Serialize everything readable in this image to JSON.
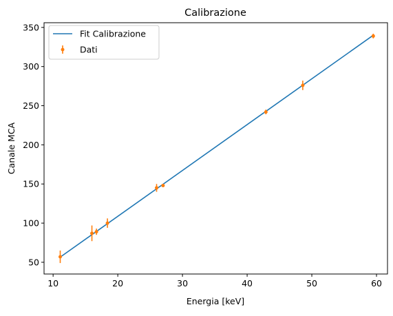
{
  "chart_data": {
    "type": "scatter",
    "title": "Calibrazione",
    "xlabel": "Energia [keV]",
    "ylabel": "Canale MCA",
    "xlim": [
      8.6,
      61.7
    ],
    "ylim": [
      35,
      356
    ],
    "xticks": [
      10,
      20,
      30,
      40,
      50,
      60
    ],
    "yticks": [
      50,
      100,
      150,
      200,
      250,
      300,
      350
    ],
    "grid": false,
    "legend": "top-left",
    "series": [
      {
        "name": "Fit Calibrazione",
        "kind": "line",
        "color": "#1f77b4",
        "x": [
          11.0,
          59.5
        ],
        "y": [
          56,
          340
        ]
      },
      {
        "name": "Dati",
        "kind": "errorbar",
        "color": "#ff7f0e",
        "x": [
          11.1,
          16.0,
          16.7,
          18.4,
          26.0,
          27.0,
          42.9,
          48.6,
          59.5
        ],
        "y": [
          57,
          87,
          89,
          100,
          145,
          148,
          242,
          276,
          339
        ],
        "yerr": [
          8,
          10,
          4,
          6,
          5,
          2,
          3,
          6,
          3
        ]
      }
    ]
  }
}
